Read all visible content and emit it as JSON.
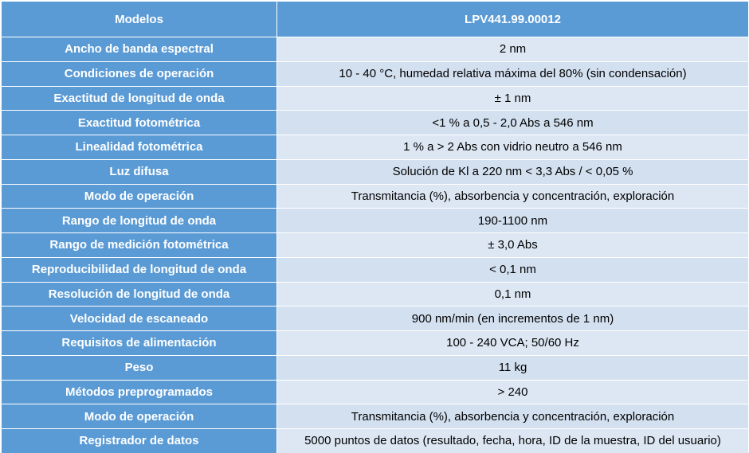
{
  "table": {
    "header": [
      "Modelos",
      "LPV441.99.00012"
    ],
    "rows": [
      [
        "Ancho de banda espectral",
        "2 nm"
      ],
      [
        "Condiciones de operación",
        "10 - 40 °C, humedad relativa máxima del 80% (sin condensación)"
      ],
      [
        "Exactitud de longitud de onda",
        "± 1 nm"
      ],
      [
        "Exactitud fotométrica",
        "<1 % a 0,5 - 2,0 Abs a 546 nm"
      ],
      [
        "Linealidad fotométrica",
        "1 % a > 2 Abs con vidrio neutro a 546 nm"
      ],
      [
        "Luz difusa",
        "Solución de Kl a 220 nm < 3,3 Abs / < 0,05 %"
      ],
      [
        "Modo de operación",
        "Transmitancia (%), absorbencia y concentración, exploración"
      ],
      [
        "Rango de longitud de onda",
        "190-1100 nm"
      ],
      [
        "Rango de medición fotométrica",
        "± 3,0 Abs"
      ],
      [
        "Reproducibilidad de longitud de onda",
        "< 0,1 nm"
      ],
      [
        "Resolución de longitud de onda",
        "0,1 nm"
      ],
      [
        "Velocidad de escaneado",
        "900 nm/min (en incrementos de 1 nm)"
      ],
      [
        "Requisitos de alimentación",
        "100 - 240 VCA; 50/60 Hz"
      ],
      [
        "Peso",
        "11 kg"
      ],
      [
        "Métodos preprogramados",
        "> 240"
      ],
      [
        "Modo de operación",
        "Transmitancia (%), absorbencia y concentración, exploración"
      ],
      [
        "Registrador de datos",
        "5000 puntos de datos (resultado, fecha, hora, ID de la muestra, ID del usuario)"
      ]
    ]
  }
}
